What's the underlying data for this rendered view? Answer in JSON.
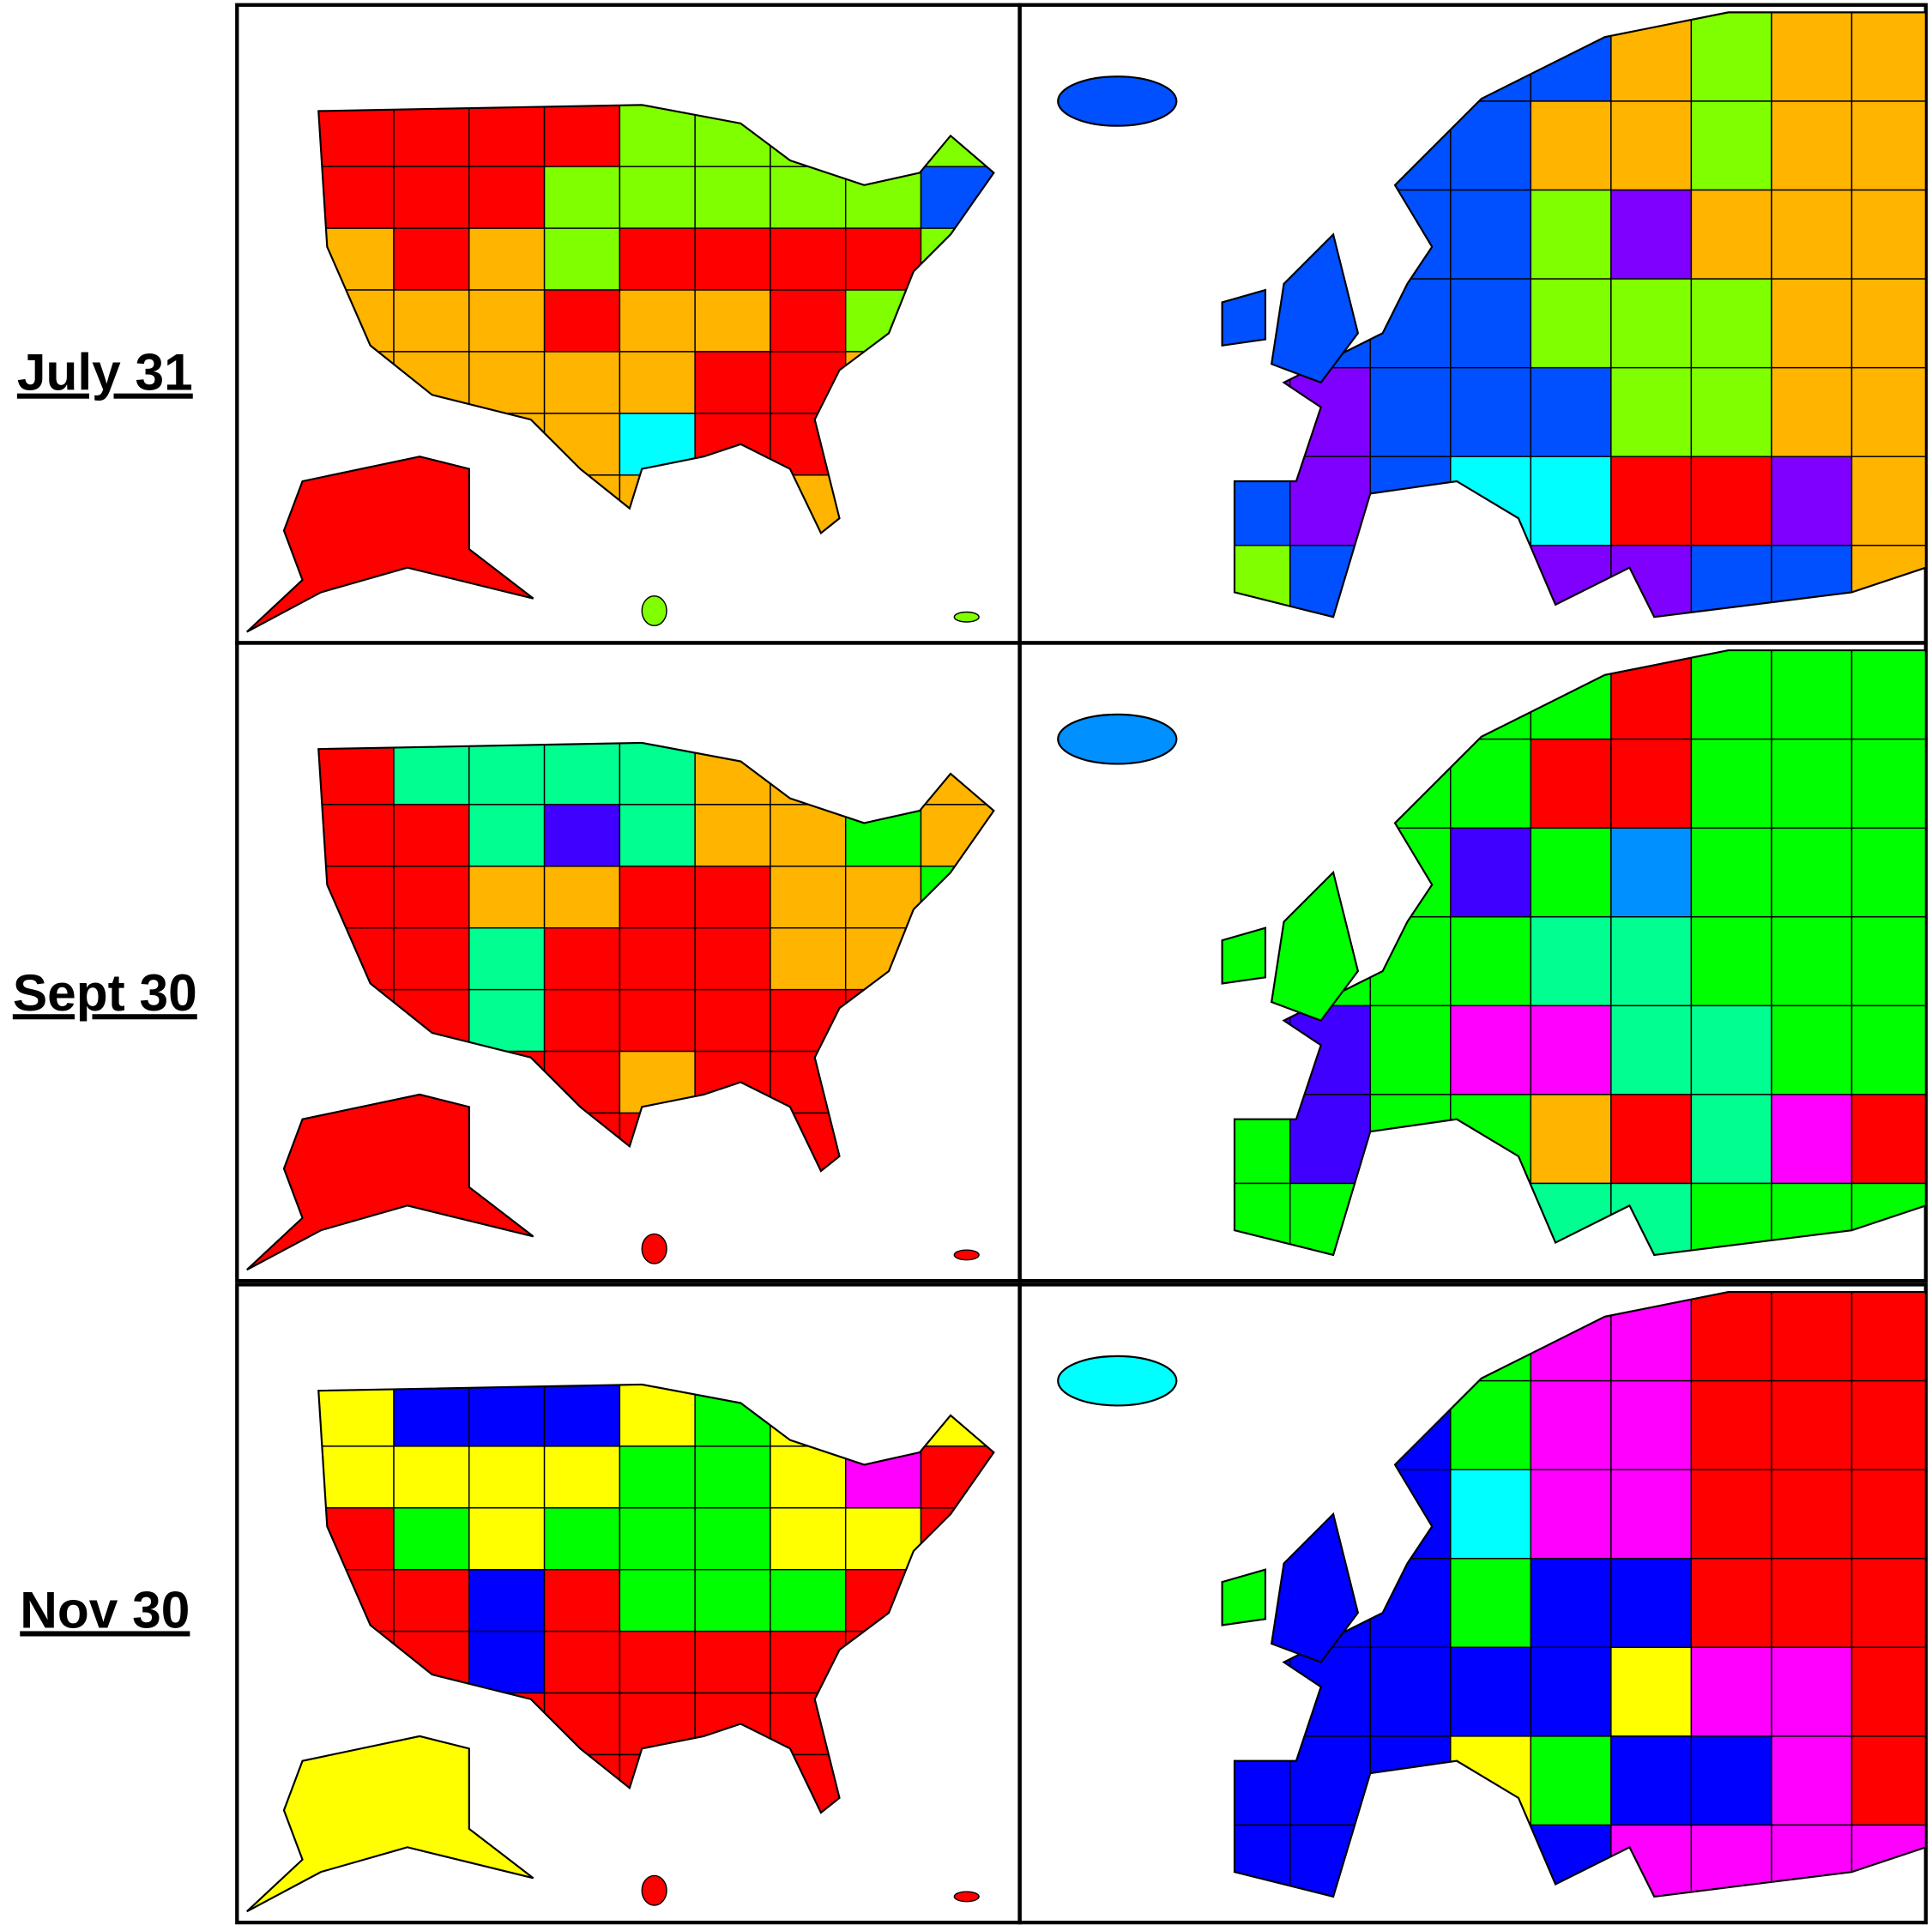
{
  "rows": [
    {
      "label": "July 31"
    },
    {
      "label": "Sept 30"
    },
    {
      "label": "Nov 30"
    }
  ]
}
